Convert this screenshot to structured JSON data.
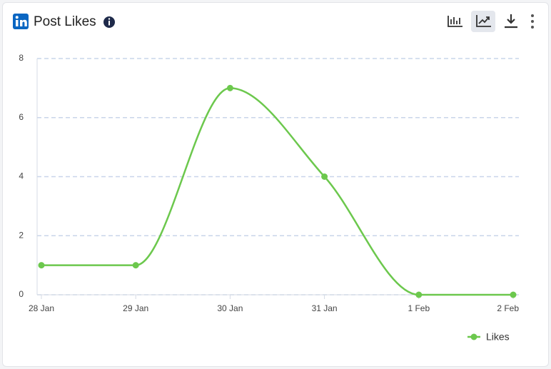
{
  "chart_data": {
    "type": "line",
    "title": "Post Likes",
    "categories": [
      "28 Jan",
      "29 Jan",
      "30 Jan",
      "31 Jan",
      "1 Feb",
      "2 Feb"
    ],
    "series": [
      {
        "name": "Likes",
        "color": "#6cc84d",
        "values": [
          1,
          1,
          7,
          4,
          0,
          0
        ]
      }
    ],
    "ylim": [
      0,
      8
    ],
    "yticks": [
      0,
      2,
      4,
      6,
      8
    ],
    "grid": true,
    "legend": "bottom-right"
  }
}
